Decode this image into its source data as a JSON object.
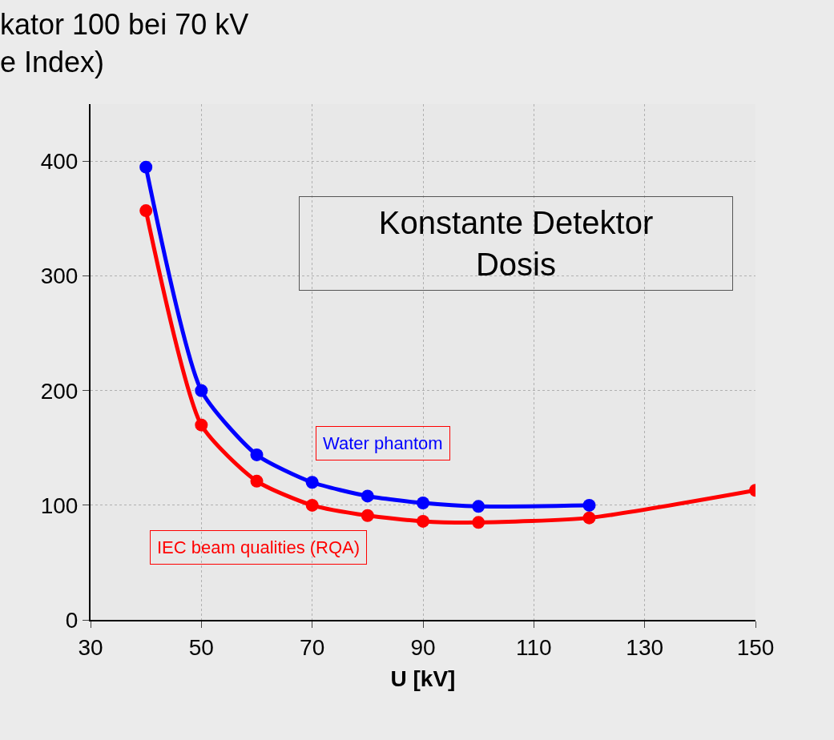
{
  "chart_data": {
    "type": "line",
    "title": "kator 100 bei 70 kV\ne Index)",
    "xlabel": "U [kV]",
    "xlim": [
      30,
      150
    ],
    "xticks": [
      30,
      50,
      70,
      90,
      110,
      130,
      150
    ],
    "ylim": [
      0,
      450
    ],
    "yticks": [
      0,
      100,
      200,
      300,
      400
    ],
    "grid": true,
    "legend": false,
    "marker": "circle",
    "line_style": "solid",
    "annotations": [
      "Konstante Detektor\nDosis"
    ],
    "series": [
      {
        "name": "Water phantom",
        "color": "#0000ff",
        "x": [
          40,
          50,
          60,
          70,
          80,
          90,
          100,
          120
        ],
        "values": [
          395,
          200,
          144,
          120,
          108,
          102,
          99,
          100
        ]
      },
      {
        "name": "IEC beam qualities (RQA)",
        "color": "#ff0000",
        "x": [
          40,
          50,
          60,
          70,
          80,
          90,
          100,
          120,
          150
        ],
        "values": [
          357,
          170,
          121,
          100,
          91,
          86,
          85,
          89,
          113
        ]
      }
    ]
  }
}
